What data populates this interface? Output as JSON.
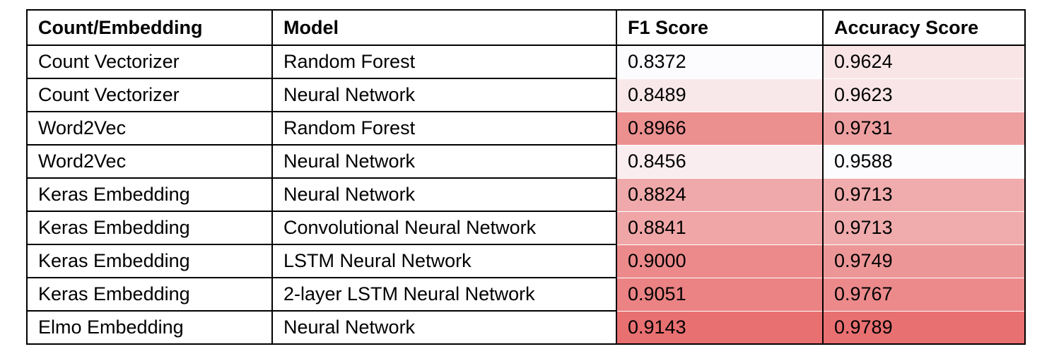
{
  "table": {
    "headers": [
      "Count/Embedding",
      "Model",
      "F1 Score",
      "Accuracy Score"
    ],
    "rows": [
      {
        "embedding": "Count Vectorizer",
        "model": "Random Forest",
        "f1": "0.8372",
        "accuracy": "0.9624",
        "f1_bg": "#FCFCFF",
        "accuracy_bg": "#F9E4E6"
      },
      {
        "embedding": "Count Vectorizer",
        "model": "Neural Network",
        "f1": "0.8489",
        "accuracy": "0.9623",
        "f1_bg": "#F9E8EA",
        "accuracy_bg": "#F9E5E7"
      },
      {
        "embedding": "Word2Vec",
        "model": "Random Forest",
        "f1": "0.8966",
        "accuracy": "0.9731",
        "f1_bg": "#EC8F8F",
        "accuracy_bg": "#EEA0A1"
      },
      {
        "embedding": "Word2Vec",
        "model": "Neural Network",
        "f1": "0.8456",
        "accuracy": "0.9588",
        "f1_bg": "#FAEDEF",
        "accuracy_bg": "#FCFCFF"
      },
      {
        "embedding": "Keras Embedding",
        "model": "Neural Network",
        "f1": "0.8824",
        "accuracy": "0.9713",
        "f1_bg": "#F0A9AA",
        "accuracy_bg": "#F0ABAC"
      },
      {
        "embedding": "Keras Embedding",
        "model": "Convolutional Neural Network",
        "f1": "0.8841",
        "accuracy": "0.9713",
        "f1_bg": "#F0A6A7",
        "accuracy_bg": "#F0ABAC"
      },
      {
        "embedding": "Keras Embedding",
        "model": "LSTM Neural Network",
        "f1": "0.9000",
        "accuracy": "0.9749",
        "f1_bg": "#EC8A8B",
        "accuracy_bg": "#ED9697"
      },
      {
        "embedding": "Keras Embedding",
        "model": "2-layer LSTM Neural Network",
        "f1": "0.9051",
        "accuracy": "0.9767",
        "f1_bg": "#EB8283",
        "accuracy_bg": "#EC8A8B"
      },
      {
        "embedding": "Elmo Embedding",
        "model": "Neural Network",
        "f1": "0.9143",
        "accuracy": "0.9789",
        "f1_bg": "#E97071",
        "accuracy_bg": "#E97071"
      }
    ]
  }
}
